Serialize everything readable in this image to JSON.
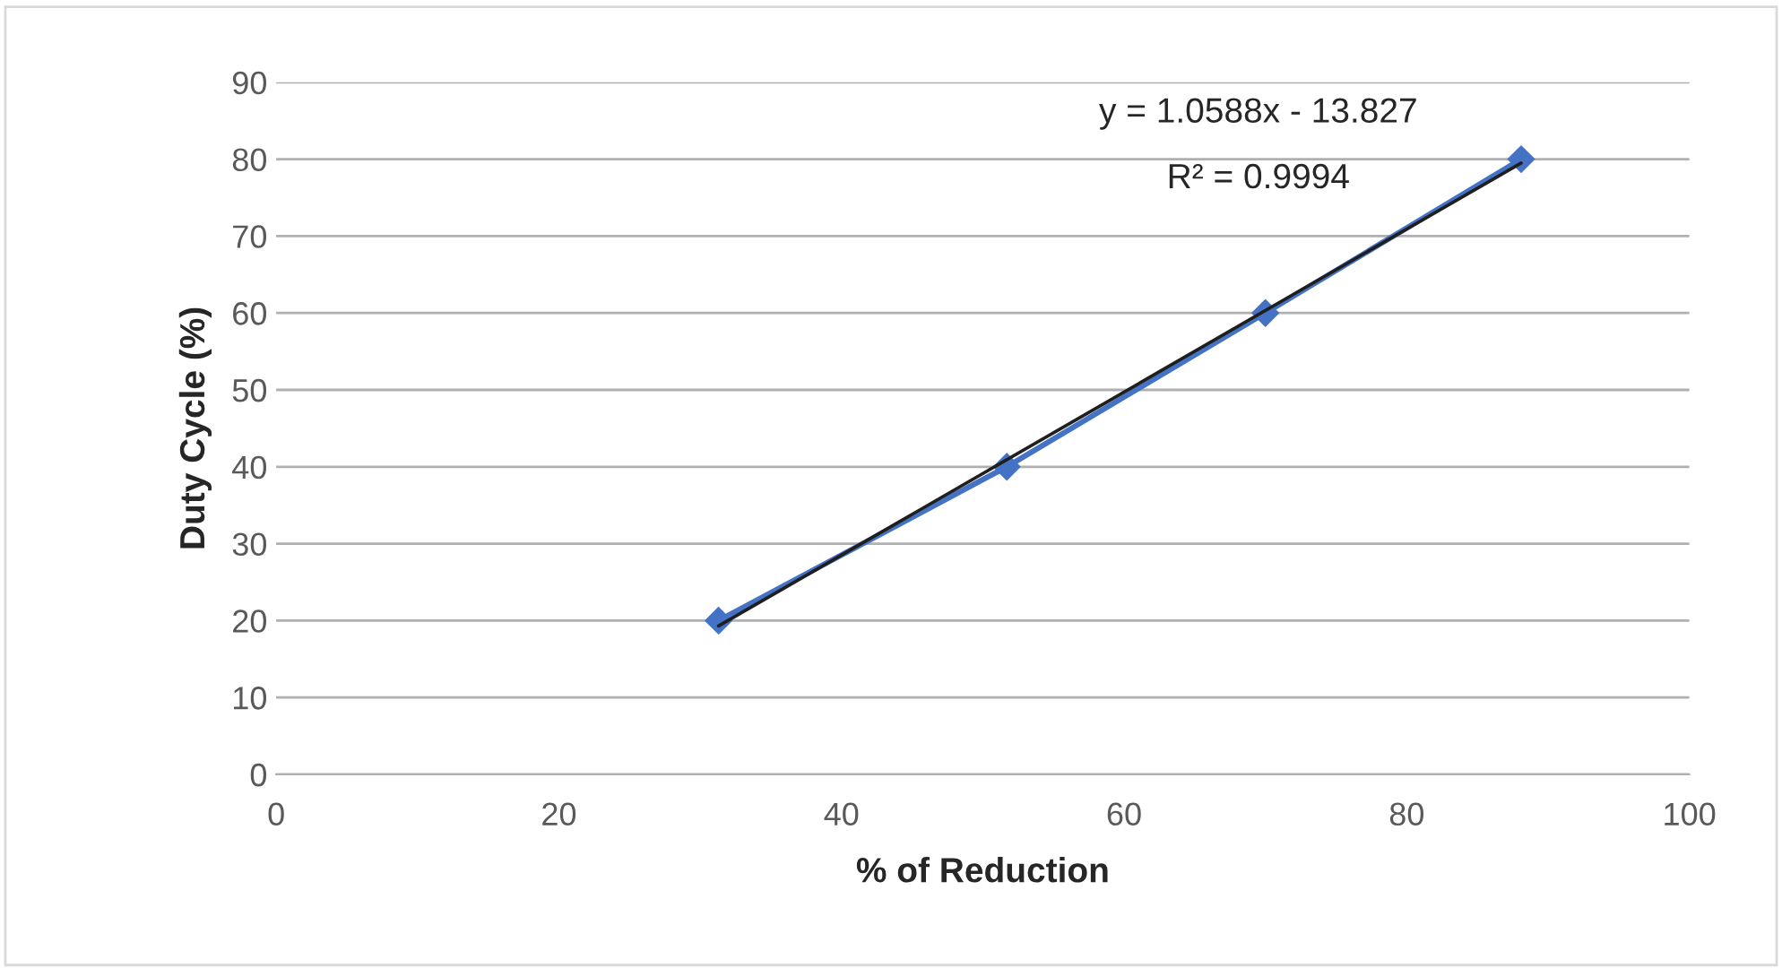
{
  "chart_data": {
    "type": "line",
    "xlabel": "% of Reduction",
    "ylabel": "Duty Cycle (%)",
    "xlim": [
      0,
      100
    ],
    "xticks": [
      0,
      20,
      40,
      60,
      80,
      100
    ],
    "ylim": [
      0,
      90
    ],
    "yticks": [
      0,
      10,
      20,
      30,
      40,
      50,
      60,
      70,
      80,
      90
    ],
    "grid": "y",
    "marker": "diamond",
    "line_style": "solid",
    "series": [
      {
        "color": "#4472c4",
        "x": [
          31.3,
          51.7,
          70.0,
          88.1
        ],
        "values": [
          20,
          40,
          60,
          80
        ]
      },
      {
        "color": "#1f1f1f",
        "x": [
          31.3,
          88.1
        ],
        "values": [
          19.3,
          79.5
        ],
        "marker": "none"
      }
    ],
    "annotations": [
      "y = 1.0588x - 13.827",
      "R² = 0.9994"
    ]
  }
}
